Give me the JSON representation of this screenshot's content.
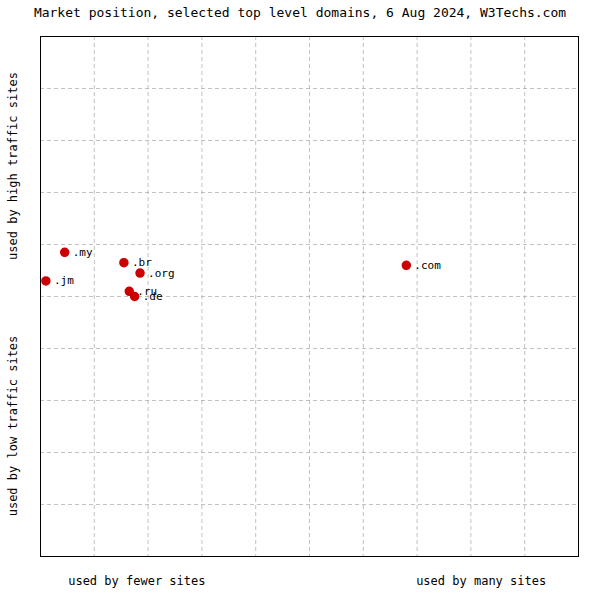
{
  "chart_data": {
    "type": "scatter",
    "title": "Market position, selected top level domains, 6 Aug 2024, W3Techs.com",
    "xlabel_left": "used by fewer sites",
    "xlabel_right": "used by many sites",
    "ylabel_top": "used by high traffic sites",
    "ylabel_bottom": "used by low traffic sites",
    "labels": [
      ".my",
      ".jm",
      ".br",
      ".org",
      ".ru",
      ".de",
      ".com"
    ],
    "x": [
      0.045,
      0.01,
      0.155,
      0.185,
      0.165,
      0.175,
      0.68
    ],
    "y": [
      0.585,
      0.53,
      0.565,
      0.545,
      0.51,
      0.5,
      0.56
    ],
    "color": "#cc0000",
    "xlim": [
      0,
      1
    ],
    "ylim": [
      0,
      1
    ],
    "xticks": [
      0.1,
      0.2,
      0.3,
      0.4,
      0.5,
      0.6,
      0.7,
      0.8,
      0.9,
      1.0
    ],
    "yticks": [
      0.1,
      0.2,
      0.3,
      0.4,
      0.5,
      0.6,
      0.7,
      0.8,
      0.9,
      1.0
    ],
    "grid": true,
    "tick_labels": false
  }
}
